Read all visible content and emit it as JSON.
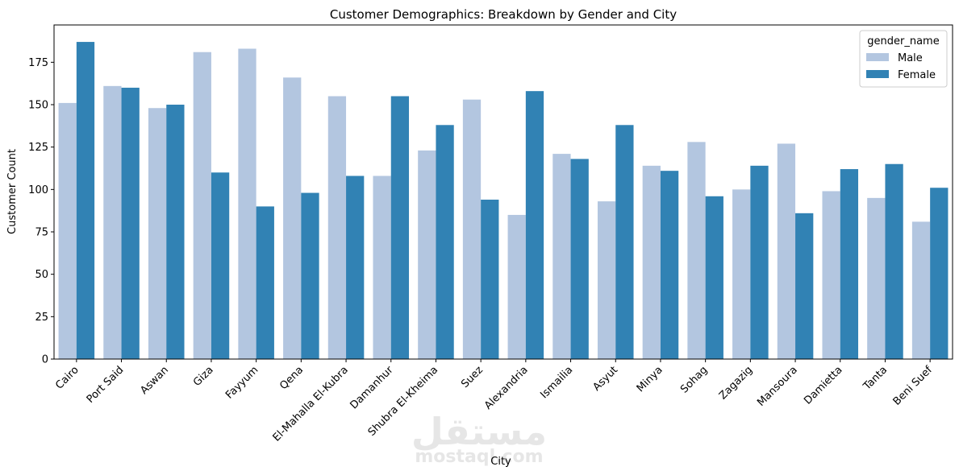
{
  "chart_data": {
    "type": "bar",
    "title": "Customer Demographics: Breakdown by Gender and City",
    "xlabel": "City",
    "ylabel": "Customer Count",
    "ylim": [
      0,
      197
    ],
    "yticks": [
      0,
      25,
      50,
      75,
      100,
      125,
      150,
      175
    ],
    "grid": false,
    "legend_position": "top-right",
    "legend_title": "gender_name",
    "categories": [
      "Cairo",
      "Port Said",
      "Aswan",
      "Giza",
      "Fayyum",
      "Qena",
      "El-Mahalla El-Kubra",
      "Damanhur",
      "Shubra El-Kheima",
      "Suez",
      "Alexandria",
      "Ismailia",
      "Asyut",
      "Minya",
      "Sohag",
      "Zagazig",
      "Mansoura",
      "Damietta",
      "Tanta",
      "Beni Suef"
    ],
    "series": [
      {
        "name": "Male",
        "color": "#b3c6e0",
        "values": [
          151,
          161,
          148,
          181,
          183,
          166,
          155,
          108,
          123,
          153,
          85,
          121,
          93,
          114,
          128,
          100,
          127,
          99,
          95,
          81
        ]
      },
      {
        "name": "Female",
        "color": "#3182b4",
        "values": [
          187,
          160,
          150,
          110,
          90,
          98,
          108,
          155,
          138,
          94,
          158,
          118,
          138,
          111,
          96,
          114,
          86,
          112,
          115,
          101
        ]
      }
    ]
  },
  "watermark": {
    "arabic": "مستقل",
    "latin": "mostaql.com"
  }
}
